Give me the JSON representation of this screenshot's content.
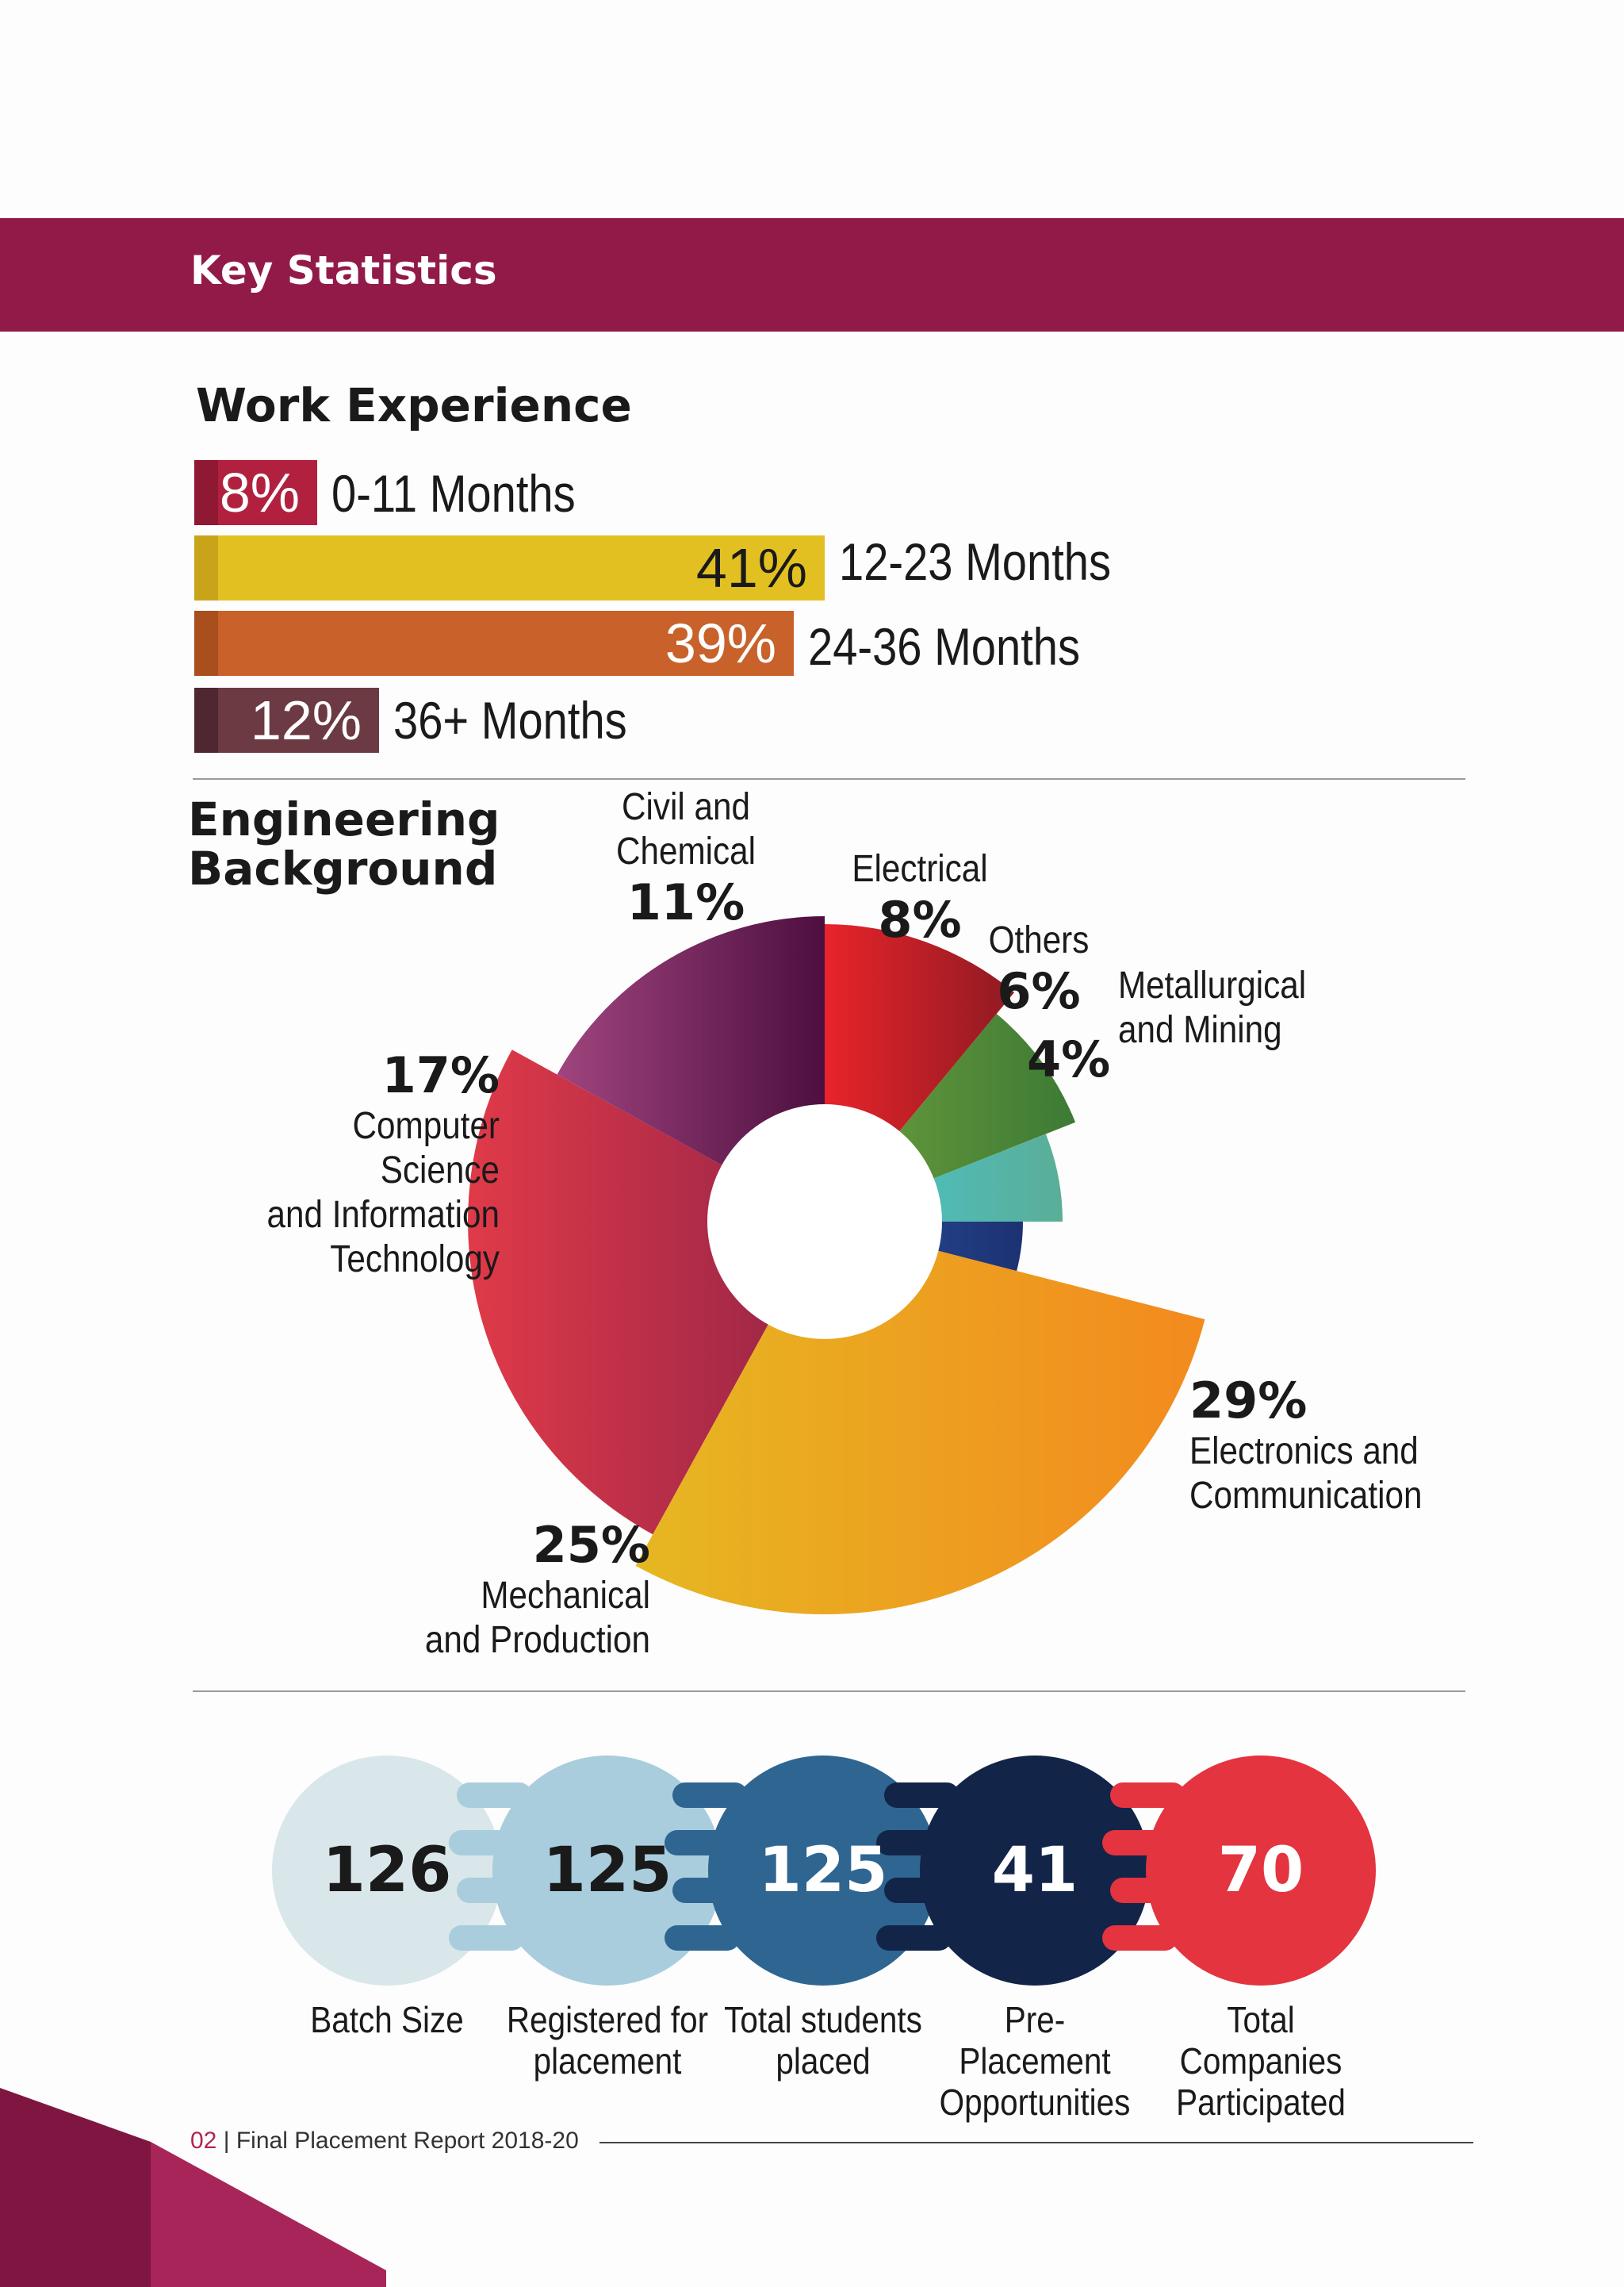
{
  "header": {
    "title": "Key Statistics",
    "color": "#911a48"
  },
  "work_experience": {
    "title": "Work Experience",
    "bars": [
      {
        "pct_label": "8%",
        "range": "0-11 Months",
        "value": 8,
        "color": "#b1213f",
        "stub": "#8f1832"
      },
      {
        "pct_label": "41%",
        "range": "12-23 Months",
        "value": 41,
        "color": "#e3c022",
        "stub": "#c9a41b",
        "dark_text": true
      },
      {
        "pct_label": "39%",
        "range": "24-36 Months",
        "value": 39,
        "color": "#c8622a",
        "stub": "#a94e1d"
      },
      {
        "pct_label": "12%",
        "range": "36+ Months",
        "value": 12,
        "color": "#6b3a42",
        "stub": "#4f2730"
      }
    ]
  },
  "engineering": {
    "title_line1": "Engineering",
    "title_line2": "Background"
  },
  "chart_data": {
    "type": "pie",
    "variant": "exploded donut",
    "slices": [
      {
        "name": "Civil and\nChemical",
        "value": 11,
        "label": "11%",
        "color_a": "#e8242a",
        "color_b": "#8f1a22"
      },
      {
        "name": "Electrical",
        "value": 8,
        "label": "8%",
        "color_a": "#6c9e3c",
        "color_b": "#3d7a35"
      },
      {
        "name": "Others",
        "value": 6,
        "label": "6%",
        "color_a": "#47c6d1",
        "color_b": "#5aae97"
      },
      {
        "name": "Metallurgical\nand Mining",
        "value": 4,
        "label": "4%",
        "color_a": "#2a4f9c",
        "color_b": "#1c3272"
      },
      {
        "name": "Electronics and\nCommunication",
        "value": 29,
        "label": "29%",
        "color_a": "#e6b722",
        "color_b": "#f38a1e"
      },
      {
        "name": "Mechanical\nand Production",
        "value": 25,
        "label": "25%",
        "color_a": "#e03a48",
        "color_b": "#962448"
      },
      {
        "name": "Computer Science\nand Information\nTechnology",
        "value": 17,
        "label": "17%",
        "color_a": "#a0447e",
        "color_b": "#4d0f3f"
      }
    ]
  },
  "stats": [
    {
      "value": "126",
      "label": "Batch Size",
      "color": "#d9e6ea",
      "text_color": "#1a1a1a"
    },
    {
      "value": "125",
      "label": "Registered for\nplacement",
      "color": "#a9cddc",
      "text_color": "#1a1a1a"
    },
    {
      "value": "125",
      "label": "Total students\nplaced",
      "color": "#2f6591",
      "text_color": "#ffffff"
    },
    {
      "value": "41",
      "label": "Pre-Placement\nOpportunities",
      "color": "#132449",
      "text_color": "#ffffff"
    },
    {
      "value": "70",
      "label": "Total Companies\nParticipated",
      "color": "#e3343f",
      "text_color": "#ffffff"
    }
  ],
  "footer": {
    "page": "02",
    "separator": " | ",
    "title": "Final Placement Report 2018-20"
  }
}
